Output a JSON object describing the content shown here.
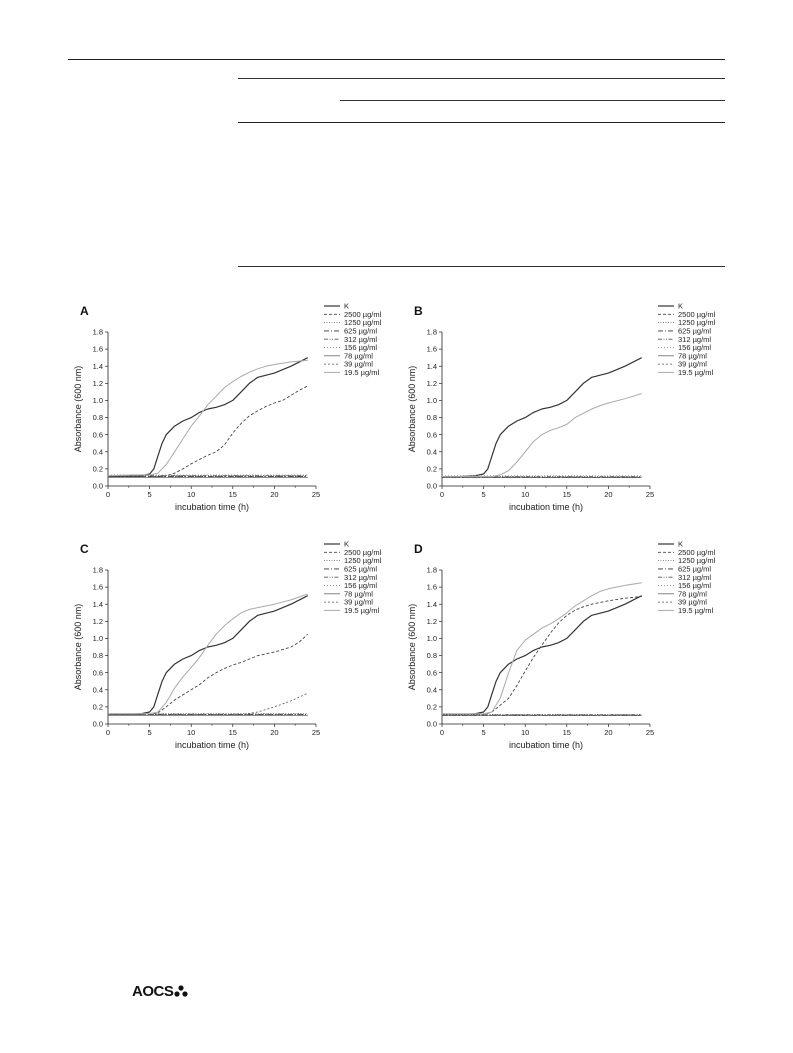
{
  "footer": {
    "logo_text": "AOCS"
  },
  "chart_data": [
    {
      "type": "line",
      "panel_label": "A",
      "xlabel": "incubation time (h)",
      "ylabel": "Absorbance (600 nm)",
      "xlim": [
        0,
        25
      ],
      "ylim": [
        0,
        1.8
      ],
      "xticks": [
        0,
        5,
        10,
        15,
        20,
        25
      ],
      "yticks": [
        0.0,
        0.2,
        0.4,
        0.6,
        0.8,
        1.0,
        1.2,
        1.4,
        1.6,
        1.8
      ],
      "legend_position": "top-right",
      "series": [
        {
          "name": "K",
          "color": "#333333",
          "dash": "",
          "width": 1.2,
          "x": [
            0,
            2,
            3,
            4,
            5,
            5.5,
            6,
            6.5,
            7,
            8,
            9,
            10,
            11,
            12,
            13,
            14,
            15,
            16,
            17,
            18,
            20,
            22,
            24
          ],
          "y": [
            0.11,
            0.11,
            0.115,
            0.12,
            0.14,
            0.2,
            0.35,
            0.5,
            0.6,
            0.7,
            0.76,
            0.8,
            0.86,
            0.9,
            0.92,
            0.95,
            1.0,
            1.1,
            1.2,
            1.27,
            1.32,
            1.4,
            1.5
          ]
        },
        {
          "name": "2500 µg/ml",
          "color": "#444444",
          "dash": "3,2",
          "width": 0.9,
          "x": [
            0,
            5,
            6,
            7,
            8,
            9,
            10,
            11,
            12,
            13,
            14,
            15,
            16,
            17,
            18,
            19,
            20,
            21,
            22,
            23,
            24
          ],
          "y": [
            0.11,
            0.11,
            0.11,
            0.12,
            0.15,
            0.2,
            0.26,
            0.31,
            0.36,
            0.4,
            0.48,
            0.62,
            0.73,
            0.82,
            0.88,
            0.93,
            0.97,
            1.0,
            1.06,
            1.12,
            1.17
          ]
        },
        {
          "name": "1250 µg/ml",
          "color": "#777777",
          "dash": "1,1.5",
          "width": 0.9,
          "x": [
            0,
            24
          ],
          "y": [
            0.12,
            0.12
          ]
        },
        {
          "name": "625 µg/ml",
          "color": "#333333",
          "dash": "5,2,1,2",
          "width": 0.9,
          "x": [
            0,
            24
          ],
          "y": [
            0.11,
            0.11
          ]
        },
        {
          "name": "312 µg/ml",
          "color": "#555555",
          "dash": "4,1.5,1,1.5,1,1.5",
          "width": 0.8,
          "x": [
            0,
            24
          ],
          "y": [
            0.12,
            0.12
          ]
        },
        {
          "name": "156 µg/ml",
          "color": "#9a9a9a",
          "dash": "1,2",
          "width": 0.9,
          "x": [
            0,
            24
          ],
          "y": [
            0.13,
            0.13
          ]
        },
        {
          "name": "78 µg/ml",
          "color": "#666666",
          "dash": "",
          "width": 0.8,
          "x": [
            0,
            24
          ],
          "y": [
            0.1,
            0.1
          ]
        },
        {
          "name": "39 µg/ml",
          "color": "#555555",
          "dash": "2,2",
          "width": 0.8,
          "x": [
            0,
            24
          ],
          "y": [
            0.11,
            0.11
          ]
        },
        {
          "name": "19.5 µg/ml",
          "color": "#aaaaaa",
          "dash": "",
          "width": 1.0,
          "x": [
            0,
            3,
            5,
            6,
            7,
            8,
            9,
            10,
            11,
            12,
            13,
            14,
            15,
            16,
            17,
            18,
            19,
            20,
            22,
            24
          ],
          "y": [
            0.12,
            0.13,
            0.13,
            0.15,
            0.25,
            0.4,
            0.55,
            0.7,
            0.82,
            0.95,
            1.05,
            1.15,
            1.22,
            1.28,
            1.33,
            1.37,
            1.4,
            1.42,
            1.45,
            1.47
          ]
        }
      ]
    },
    {
      "type": "line",
      "panel_label": "B",
      "xlabel": "incubation time (h)",
      "ylabel": "Absorbance (600 nm)",
      "xlim": [
        0,
        25
      ],
      "ylim": [
        0,
        1.8
      ],
      "xticks": [
        0,
        5,
        10,
        15,
        20,
        25
      ],
      "yticks": [
        0.0,
        0.2,
        0.4,
        0.6,
        0.8,
        1.0,
        1.2,
        1.4,
        1.6,
        1.8
      ],
      "legend_position": "top-right",
      "series": [
        {
          "name": "K",
          "color": "#333333",
          "dash": "",
          "width": 1.2,
          "x": [
            0,
            2,
            3,
            4,
            5,
            5.5,
            6,
            6.5,
            7,
            8,
            9,
            10,
            11,
            12,
            13,
            14,
            15,
            16,
            17,
            18,
            20,
            22,
            24
          ],
          "y": [
            0.11,
            0.11,
            0.115,
            0.12,
            0.14,
            0.2,
            0.35,
            0.5,
            0.6,
            0.7,
            0.76,
            0.8,
            0.86,
            0.9,
            0.92,
            0.95,
            1.0,
            1.1,
            1.2,
            1.27,
            1.32,
            1.4,
            1.5
          ]
        },
        {
          "name": "2500 µg/ml",
          "color": "#444444",
          "dash": "3,2",
          "width": 0.9,
          "x": [
            0,
            24
          ],
          "y": [
            0.1,
            0.1
          ]
        },
        {
          "name": "1250 µg/ml",
          "color": "#777777",
          "dash": "1,1.5",
          "width": 0.9,
          "x": [
            0,
            24
          ],
          "y": [
            0.11,
            0.11
          ]
        },
        {
          "name": "625 µg/ml",
          "color": "#333333",
          "dash": "5,2,1,2",
          "width": 0.9,
          "x": [
            0,
            24
          ],
          "y": [
            0.1,
            0.1
          ]
        },
        {
          "name": "312 µg/ml",
          "color": "#555555",
          "dash": "4,1.5,1,1.5,1,1.5",
          "width": 0.8,
          "x": [
            0,
            24
          ],
          "y": [
            0.11,
            0.11
          ]
        },
        {
          "name": "156 µg/ml",
          "color": "#9a9a9a",
          "dash": "1,2",
          "width": 0.9,
          "x": [
            0,
            24
          ],
          "y": [
            0.12,
            0.12
          ]
        },
        {
          "name": "78 µg/ml",
          "color": "#666666",
          "dash": "",
          "width": 0.8,
          "x": [
            0,
            24
          ],
          "y": [
            0.1,
            0.1
          ]
        },
        {
          "name": "39 µg/ml",
          "color": "#555555",
          "dash": "2,2",
          "width": 0.8,
          "x": [
            0,
            24
          ],
          "y": [
            0.1,
            0.1
          ]
        },
        {
          "name": "19.5 µg/ml",
          "color": "#aaaaaa",
          "dash": "",
          "width": 1.0,
          "x": [
            0,
            6,
            7,
            8,
            9,
            10,
            11,
            12,
            13,
            14,
            15,
            16,
            17,
            18,
            19,
            20,
            22,
            24
          ],
          "y": [
            0.11,
            0.11,
            0.13,
            0.18,
            0.28,
            0.4,
            0.52,
            0.6,
            0.65,
            0.68,
            0.72,
            0.8,
            0.85,
            0.9,
            0.94,
            0.97,
            1.02,
            1.08
          ]
        }
      ]
    },
    {
      "type": "line",
      "panel_label": "C",
      "xlabel": "incubation time (h)",
      "ylabel": "Absorbance (600 nm)",
      "xlim": [
        0,
        25
      ],
      "ylim": [
        0,
        1.8
      ],
      "xticks": [
        0,
        5,
        10,
        15,
        20,
        25
      ],
      "yticks": [
        0.0,
        0.2,
        0.4,
        0.6,
        0.8,
        1.0,
        1.2,
        1.4,
        1.6,
        1.8
      ],
      "legend_position": "top-right",
      "series": [
        {
          "name": "K",
          "color": "#333333",
          "dash": "",
          "width": 1.2,
          "x": [
            0,
            2,
            3,
            4,
            5,
            5.5,
            6,
            6.5,
            7,
            8,
            9,
            10,
            11,
            12,
            13,
            14,
            15,
            16,
            17,
            18,
            20,
            22,
            24
          ],
          "y": [
            0.11,
            0.11,
            0.115,
            0.12,
            0.14,
            0.2,
            0.35,
            0.5,
            0.6,
            0.7,
            0.76,
            0.8,
            0.86,
            0.9,
            0.92,
            0.95,
            1.0,
            1.1,
            1.2,
            1.27,
            1.32,
            1.4,
            1.5
          ]
        },
        {
          "name": "2500 µg/ml",
          "color": "#444444",
          "dash": "3,2",
          "width": 0.9,
          "x": [
            0,
            5,
            6,
            7,
            8,
            9,
            10,
            11,
            12,
            13,
            14,
            15,
            16,
            17,
            18,
            19,
            20,
            21,
            22,
            23,
            24
          ],
          "y": [
            0.11,
            0.11,
            0.13,
            0.2,
            0.28,
            0.34,
            0.4,
            0.46,
            0.54,
            0.6,
            0.65,
            0.69,
            0.72,
            0.76,
            0.8,
            0.82,
            0.84,
            0.87,
            0.9,
            0.96,
            1.05
          ]
        },
        {
          "name": "1250 µg/ml",
          "color": "#777777",
          "dash": "1,1.5",
          "width": 0.9,
          "x": [
            0,
            24
          ],
          "y": [
            0.12,
            0.12
          ]
        },
        {
          "name": "625 µg/ml",
          "color": "#333333",
          "dash": "5,2,1,2",
          "width": 0.9,
          "x": [
            0,
            24
          ],
          "y": [
            0.11,
            0.11
          ]
        },
        {
          "name": "312 µg/ml",
          "color": "#555555",
          "dash": "4,1.5,1,1.5,1,1.5",
          "width": 0.8,
          "x": [
            0,
            24
          ],
          "y": [
            0.11,
            0.11
          ]
        },
        {
          "name": "156 µg/ml",
          "color": "#9a9a9a",
          "dash": "1,2",
          "width": 0.9,
          "x": [
            0,
            24
          ],
          "y": [
            0.12,
            0.12
          ]
        },
        {
          "name": "78 µg/ml",
          "color": "#666666",
          "dash": "",
          "width": 0.8,
          "x": [
            0,
            24
          ],
          "y": [
            0.1,
            0.1
          ]
        },
        {
          "name": "39 µg/ml",
          "color": "#555555",
          "dash": "2,2",
          "width": 0.8,
          "x": [
            0,
            16,
            18,
            20,
            22,
            24
          ],
          "y": [
            0.11,
            0.11,
            0.14,
            0.2,
            0.27,
            0.36
          ]
        },
        {
          "name": "19.5 µg/ml",
          "color": "#aaaaaa",
          "dash": "",
          "width": 1.0,
          "x": [
            0,
            5,
            6,
            7,
            8,
            9,
            10,
            11,
            12,
            13,
            14,
            15,
            16,
            17,
            18,
            20,
            22,
            24
          ],
          "y": [
            0.12,
            0.12,
            0.14,
            0.25,
            0.42,
            0.55,
            0.66,
            0.78,
            0.92,
            1.05,
            1.15,
            1.23,
            1.3,
            1.34,
            1.36,
            1.4,
            1.45,
            1.52
          ]
        }
      ]
    },
    {
      "type": "line",
      "panel_label": "D",
      "xlabel": "incubation time (h)",
      "ylabel": "Absorbance (600 nm)",
      "xlim": [
        0,
        25
      ],
      "ylim": [
        0,
        1.8
      ],
      "xticks": [
        0,
        5,
        10,
        15,
        20,
        25
      ],
      "yticks": [
        0.0,
        0.2,
        0.4,
        0.6,
        0.8,
        1.0,
        1.2,
        1.4,
        1.6,
        1.8
      ],
      "legend_position": "top-right",
      "series": [
        {
          "name": "K",
          "color": "#333333",
          "dash": "",
          "width": 1.2,
          "x": [
            0,
            2,
            3,
            4,
            5,
            5.5,
            6,
            6.5,
            7,
            8,
            9,
            10,
            11,
            12,
            13,
            14,
            15,
            16,
            17,
            18,
            20,
            22,
            24
          ],
          "y": [
            0.11,
            0.11,
            0.115,
            0.12,
            0.14,
            0.2,
            0.35,
            0.5,
            0.6,
            0.7,
            0.76,
            0.8,
            0.86,
            0.9,
            0.92,
            0.95,
            1.0,
            1.1,
            1.2,
            1.27,
            1.32,
            1.4,
            1.5
          ]
        },
        {
          "name": "2500 µg/ml",
          "color": "#444444",
          "dash": "3,2",
          "width": 0.9,
          "x": [
            0,
            5,
            6,
            7,
            8,
            9,
            10,
            11,
            12,
            13,
            14,
            15,
            16,
            17,
            18,
            20,
            22,
            24
          ],
          "y": [
            0.11,
            0.11,
            0.14,
            0.22,
            0.3,
            0.45,
            0.62,
            0.78,
            0.92,
            1.06,
            1.18,
            1.27,
            1.33,
            1.37,
            1.4,
            1.44,
            1.47,
            1.49
          ]
        },
        {
          "name": "1250 µg/ml",
          "color": "#777777",
          "dash": "1,1.5",
          "width": 0.9,
          "x": [
            0,
            24
          ],
          "y": [
            0.11,
            0.11
          ]
        },
        {
          "name": "625 µg/ml",
          "color": "#333333",
          "dash": "5,2,1,2",
          "width": 0.9,
          "x": [
            0,
            24
          ],
          "y": [
            0.1,
            0.1
          ]
        },
        {
          "name": "312 µg/ml",
          "color": "#555555",
          "dash": "4,1.5,1,1.5,1,1.5",
          "width": 0.8,
          "x": [
            0,
            24
          ],
          "y": [
            0.11,
            0.11
          ]
        },
        {
          "name": "156 µg/ml",
          "color": "#9a9a9a",
          "dash": "1,2",
          "width": 0.9,
          "x": [
            0,
            24
          ],
          "y": [
            0.11,
            0.11
          ]
        },
        {
          "name": "78 µg/ml",
          "color": "#666666",
          "dash": "",
          "width": 0.8,
          "x": [
            0,
            24
          ],
          "y": [
            0.1,
            0.1
          ]
        },
        {
          "name": "39 µg/ml",
          "color": "#555555",
          "dash": "2,2",
          "width": 0.8,
          "x": [
            0,
            24
          ],
          "y": [
            0.1,
            0.1
          ]
        },
        {
          "name": "19.5 µg/ml",
          "color": "#aaaaaa",
          "dash": "",
          "width": 1.0,
          "x": [
            0,
            5,
            6,
            7,
            8,
            9,
            10,
            11,
            12,
            13,
            14,
            15,
            16,
            17,
            18,
            19,
            20,
            22,
            24
          ],
          "y": [
            0.12,
            0.12,
            0.14,
            0.3,
            0.6,
            0.86,
            0.98,
            1.05,
            1.12,
            1.17,
            1.23,
            1.3,
            1.38,
            1.44,
            1.5,
            1.55,
            1.58,
            1.62,
            1.65
          ]
        }
      ]
    }
  ]
}
